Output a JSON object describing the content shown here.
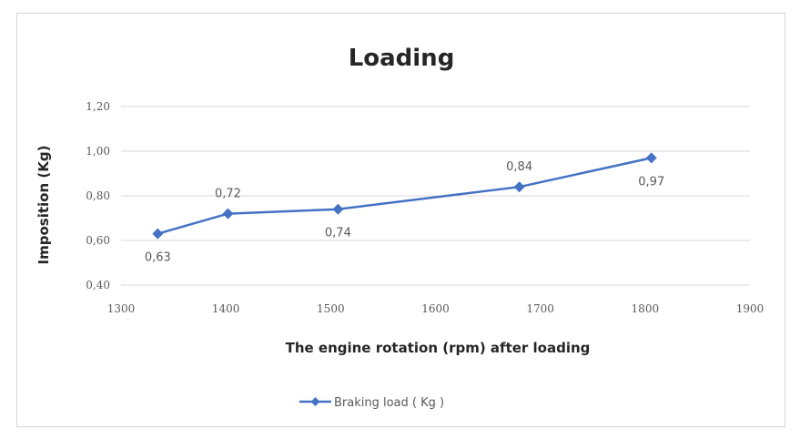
{
  "chart_data": {
    "type": "line",
    "title": "Loading",
    "xlabel": "The engine rotation (rpm) after loading",
    "ylabel": "Imposition (Kg)",
    "xlim": [
      1300,
      1900
    ],
    "ylim": [
      0.4,
      1.2
    ],
    "x_ticks": [
      "1300",
      "1400",
      "1500",
      "1600",
      "1700",
      "1800",
      "1900"
    ],
    "y_ticks": [
      "1,20",
      "1,00",
      "0,80",
      "0,60",
      "0,40"
    ],
    "grid": true,
    "legend_position": "bottom",
    "series": [
      {
        "name": "Braking load ( Kg )",
        "color": "#4472c4",
        "marker": "diamond",
        "points": [
          {
            "x": 1335,
            "y": 0.63,
            "label": "0,63",
            "label_pos": "below"
          },
          {
            "x": 1402,
            "y": 0.72,
            "label": "0,72",
            "label_pos": "above"
          },
          {
            "x": 1507,
            "y": 0.74,
            "label": "0,74",
            "label_pos": "below"
          },
          {
            "x": 1680,
            "y": 0.84,
            "label": "0,84",
            "label_pos": "above"
          },
          {
            "x": 1806,
            "y": 0.97,
            "label": "0,97",
            "label_pos": "below"
          }
        ]
      }
    ]
  }
}
